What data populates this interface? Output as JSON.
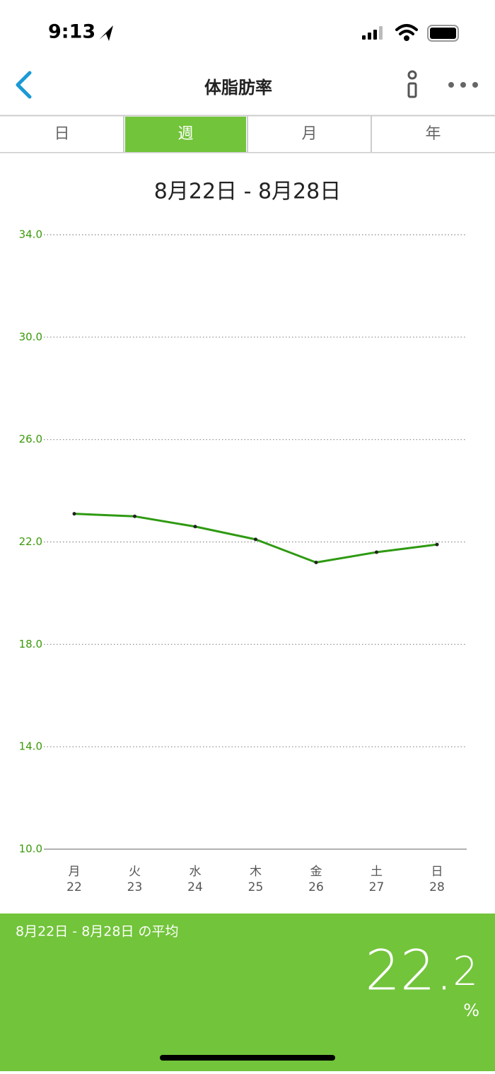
{
  "status_bar": {
    "time": "9:13"
  },
  "nav": {
    "title": "体脂肪率"
  },
  "tabs": {
    "items": [
      "日",
      "週",
      "月",
      "年"
    ],
    "selected": "週"
  },
  "range_title": "8月22日 - 8月28日",
  "chart_data": {
    "type": "line",
    "weekdays": [
      "月",
      "火",
      "水",
      "木",
      "金",
      "土",
      "日"
    ],
    "categories": [
      "22",
      "23",
      "24",
      "25",
      "26",
      "27",
      "28"
    ],
    "series": [
      {
        "color": "#2e9a12",
        "values": [
          23.1,
          23.0,
          22.6,
          22.1,
          21.2,
          21.6,
          21.9
        ]
      }
    ],
    "ylim": [
      10,
      34
    ],
    "yticks": [
      {
        "value": 10,
        "label": "10.0"
      },
      {
        "value": 14,
        "label": "14.0"
      },
      {
        "value": 18,
        "label": "18.0"
      },
      {
        "value": 22,
        "label": "22.0"
      },
      {
        "value": 26,
        "label": "26.0"
      },
      {
        "value": 30,
        "label": "30.0"
      },
      {
        "value": 34,
        "label": "34.0"
      }
    ],
    "grid": true
  },
  "summary": {
    "label": "8月22日 - 8月28日 の平均",
    "value": 22.2,
    "unit": "%"
  }
}
